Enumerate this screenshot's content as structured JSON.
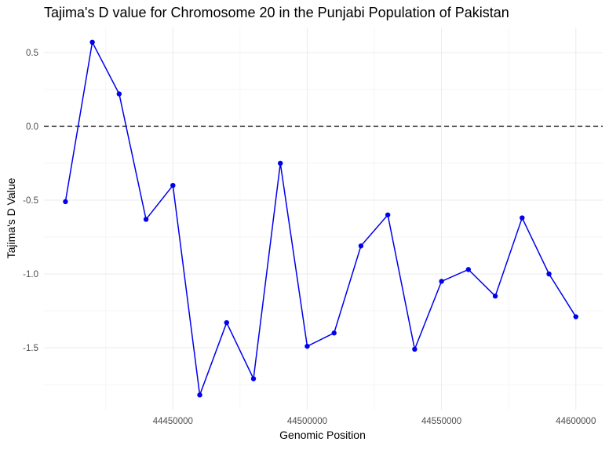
{
  "chart_data": {
    "type": "line",
    "title": "Tajima's D value for Chromosome 20 in the Punjabi Population of Pakistan",
    "xlabel": "Genomic Position",
    "ylabel": "Tajima's D Value",
    "x": [
      44410000,
      44420000,
      44430000,
      44440000,
      44450000,
      44460000,
      44470000,
      44480000,
      44490000,
      44500000,
      44510000,
      44520000,
      44530000,
      44540000,
      44550000,
      44560000,
      44570000,
      44580000,
      44590000,
      44600000
    ],
    "y": [
      -0.51,
      0.57,
      0.22,
      -0.63,
      -0.4,
      -1.82,
      -1.33,
      -1.71,
      -0.25,
      -1.49,
      -1.4,
      -0.81,
      -0.6,
      -1.51,
      -1.05,
      -0.97,
      -1.15,
      -0.62,
      -1.0,
      -1.29
    ],
    "xlim": [
      44402000,
      44610000
    ],
    "ylim": [
      -1.92,
      0.67
    ],
    "x_ticks": [
      44450000,
      44500000,
      44550000,
      44600000
    ],
    "x_tick_labels": [
      "44450000",
      "44500000",
      "44550000",
      "44600000"
    ],
    "y_ticks": [
      0.5,
      0.0,
      -0.5,
      -1.0,
      -1.5
    ],
    "y_tick_labels": [
      "0.5",
      "0.0",
      "-0.5",
      "-1.0",
      "-1.5"
    ],
    "reference_line": {
      "y": 0,
      "style": "dashed"
    },
    "grid": true,
    "colors": {
      "series": "#0000ee",
      "reference": "#222222"
    }
  }
}
